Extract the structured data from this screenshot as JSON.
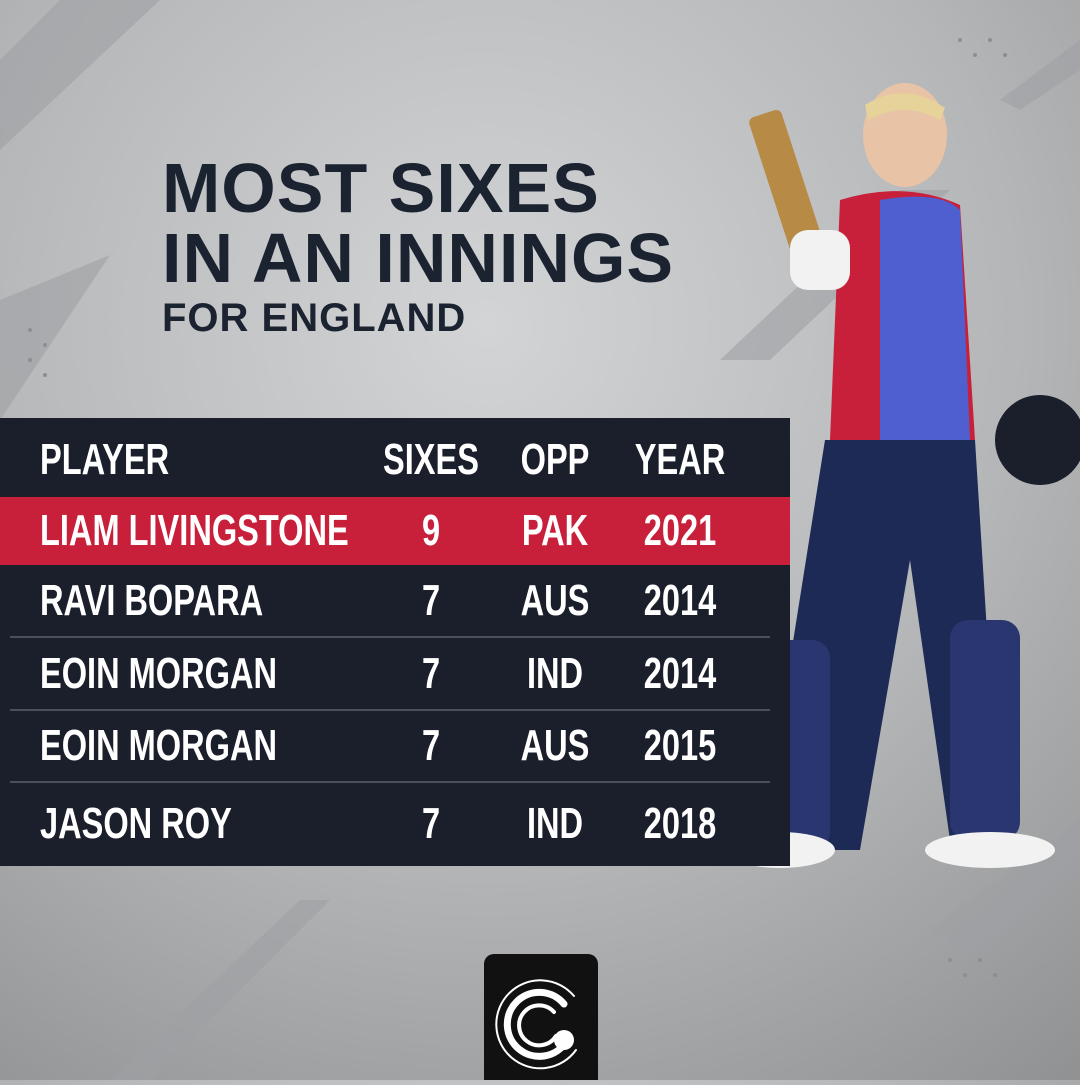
{
  "header": {
    "title_lines": [
      "MOST SIXES",
      "IN AN INNINGS"
    ],
    "subtitle": "FOR ENGLAND"
  },
  "table": {
    "columns": [
      "PLAYER",
      "SIXES",
      "OPP",
      "YEAR"
    ],
    "rows": [
      [
        "LIAM LIVINGSTONE",
        9,
        "PAK",
        2021
      ],
      [
        "RAVI BOPARA",
        7,
        "AUS",
        2014
      ],
      [
        "EOIN MORGAN",
        7,
        "IND",
        2014
      ],
      [
        "EOIN MORGAN",
        7,
        "AUS",
        2015
      ],
      [
        "JASON ROY",
        7,
        "IND",
        2018
      ]
    ],
    "highlight_row": 0
  }
}
